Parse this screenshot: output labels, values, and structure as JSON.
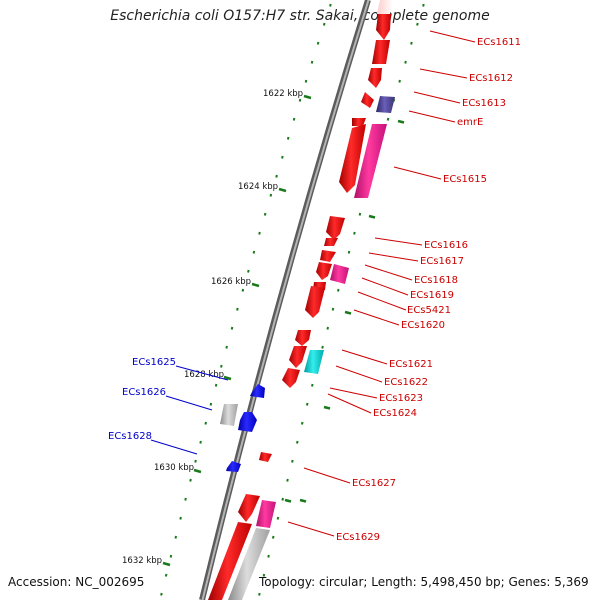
{
  "title": "Escherichia coli O157:H7 str. Sakai, complete genome",
  "accession": "Accession: NC_002695",
  "topology": "Topology: circular; Length: 5,498,450 bp; Genes: 5,369",
  "scale_labels": [
    "1622 kbp",
    "1624 kbp",
    "1626 kbp",
    "1628 kbp",
    "1630 kbp",
    "1632 kbp"
  ],
  "colors": {
    "forward_label": "#cc0000",
    "reverse_label": "#0000cc",
    "red_gene": "#ff0000",
    "blue_gene": "#0000ff",
    "magenta_gene": "#ff1493",
    "cyan_gene": "#00cccc",
    "purple_gene": "#483d8b",
    "gray_gene": "#a9a9a9",
    "tick_green": "#1a7a1a",
    "backbone": "#808080"
  },
  "gene_labels_forward": [
    "ECs1611",
    "ECs1612",
    "ECs1613",
    "emrE",
    "ECs1615",
    "ECs1616",
    "ECs1617",
    "ECs1618",
    "ECs1619",
    "ECs5421",
    "ECs1620",
    "ECs1621",
    "ECs1622",
    "ECs1623",
    "ECs1624",
    "ECs1627",
    "ECs1629"
  ],
  "gene_labels_reverse": [
    "ECs1625",
    "ECs1626",
    "ECs1628"
  ]
}
